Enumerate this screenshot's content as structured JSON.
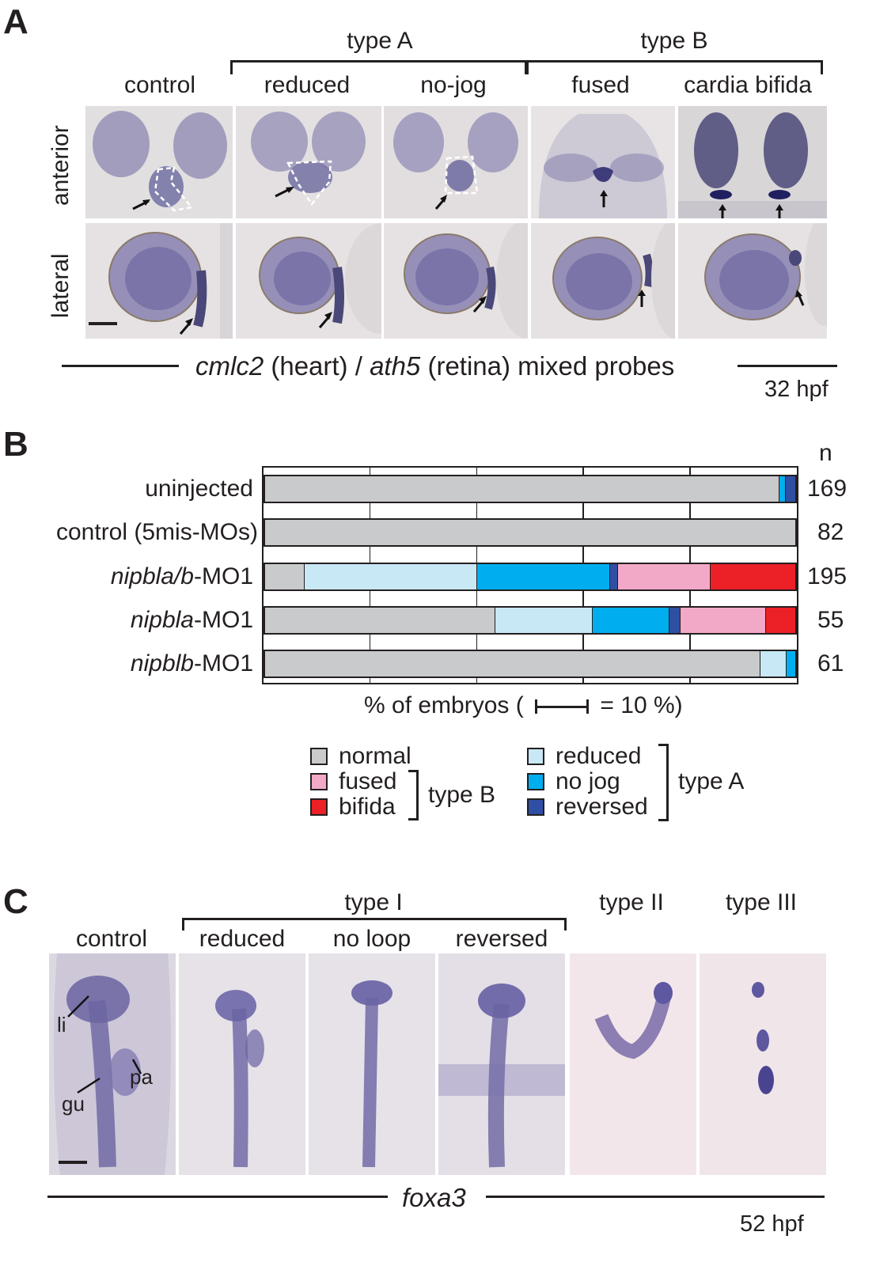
{
  "panel_a": {
    "letter": "A",
    "group_type_a": "type A",
    "group_type_b": "type B",
    "columns": [
      "control",
      "reduced",
      "no-jog",
      "fused",
      "cardia bifida"
    ],
    "rows": [
      "anterior",
      "lateral"
    ],
    "caption_gene1": "cmlc2",
    "caption_mid1": " (heart) / ",
    "caption_gene2": "ath5",
    "caption_mid2": " (retina) mixed probes",
    "stage": "32 hpf"
  },
  "panel_b": {
    "letter": "B",
    "n_header": "n",
    "xlabel_prefix": "% of embryos (",
    "xlabel_suffix": "= 10 %)",
    "legend": {
      "normal": "normal",
      "fused": "fused",
      "bifida": "bifida",
      "type_b": "type B",
      "reduced": "reduced",
      "no_jog": "no jog",
      "reversed": "reversed",
      "type_a": "type A"
    },
    "rows": [
      {
        "label_italic": "",
        "label_plain": "uninjected",
        "n": "169"
      },
      {
        "label_italic": "",
        "label_plain": "control (5mis-MOs)",
        "n": "82"
      },
      {
        "label_italic": "nipbla/b",
        "label_plain": "-MO1",
        "n": "195"
      },
      {
        "label_italic": "nipbla",
        "label_plain": "-MO1",
        "n": "55"
      },
      {
        "label_italic": "nipblb",
        "label_plain": "-MO1",
        "n": "61"
      }
    ]
  },
  "chart_data": {
    "type": "bar",
    "orientation": "horizontal-stacked-percent",
    "categories": [
      "uninjected",
      "control (5mis-MOs)",
      "nipbla/b-MO1",
      "nipbla-MO1",
      "nipblb-MO1"
    ],
    "xlim": [
      0,
      100
    ],
    "grid": true,
    "series": [
      {
        "name": "normal",
        "color": "#c8cacc",
        "values": [
          97.0,
          100.0,
          7.5,
          43.5,
          93.5
        ]
      },
      {
        "name": "reduced",
        "color": "#c8e8f5",
        "values": [
          0.0,
          0.0,
          32.5,
          18.3,
          4.9
        ]
      },
      {
        "name": "no jog",
        "color": "#00aeef",
        "values": [
          1.2,
          0.0,
          25.0,
          14.5,
          1.6
        ]
      },
      {
        "name": "reversed",
        "color": "#2e4fa3",
        "values": [
          1.8,
          0.0,
          1.5,
          2.0,
          0.0
        ]
      },
      {
        "name": "fused",
        "color": "#f2a9c8",
        "values": [
          0.0,
          0.0,
          17.5,
          16.2,
          0.0
        ]
      },
      {
        "name": "bifida",
        "color": "#ec2027",
        "values": [
          0.0,
          0.0,
          16.0,
          5.5,
          0.0
        ]
      }
    ]
  },
  "panel_c": {
    "letter": "C",
    "group_type_i": "type I",
    "columns": [
      "control",
      "reduced",
      "no loop",
      "reversed",
      "type II",
      "type III"
    ],
    "annotations": [
      "li",
      "pa",
      "gu"
    ],
    "caption_gene": "foxa3",
    "stage": "52 hpf"
  }
}
